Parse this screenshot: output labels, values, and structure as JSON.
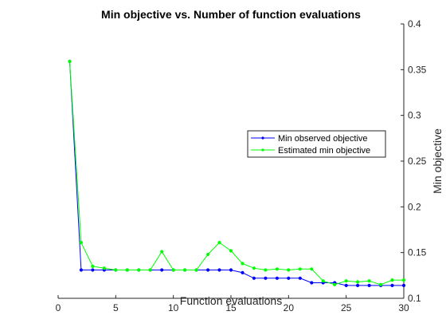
{
  "chart_data": {
    "type": "line",
    "title": "Min objective vs. Number of function evaluations",
    "xlabel": "Function evaluations",
    "ylabel": "Min objective",
    "xlim": [
      0,
      30
    ],
    "ylim": [
      0.1,
      0.4
    ],
    "xticks": [
      0,
      5,
      10,
      15,
      20,
      25,
      30
    ],
    "yticks": [
      0.1,
      0.15,
      0.2,
      0.25,
      0.3,
      0.35,
      0.4
    ],
    "y_axis_side": "right",
    "grid": false,
    "legend_position": "right-center",
    "x": [
      1,
      2,
      3,
      4,
      5,
      6,
      7,
      8,
      9,
      10,
      11,
      12,
      13,
      14,
      15,
      16,
      17,
      18,
      19,
      20,
      21,
      22,
      23,
      24,
      25,
      26,
      27,
      28,
      29,
      30
    ],
    "series": [
      {
        "name": "Min observed objective",
        "color": "#0000ff",
        "values": [
          0.359,
          0.131,
          0.131,
          0.131,
          0.131,
          0.131,
          0.131,
          0.131,
          0.131,
          0.131,
          0.131,
          0.131,
          0.131,
          0.131,
          0.131,
          0.128,
          0.122,
          0.122,
          0.122,
          0.122,
          0.122,
          0.117,
          0.117,
          0.117,
          0.114,
          0.114,
          0.114,
          0.114,
          0.114,
          0.114
        ]
      },
      {
        "name": "Estimated min objective",
        "color": "#00ff00",
        "values": [
          0.359,
          0.161,
          0.135,
          0.133,
          0.131,
          0.131,
          0.131,
          0.131,
          0.151,
          0.131,
          0.131,
          0.131,
          0.148,
          0.161,
          0.152,
          0.138,
          0.133,
          0.131,
          0.132,
          0.131,
          0.132,
          0.132,
          0.119,
          0.115,
          0.119,
          0.118,
          0.119,
          0.115,
          0.12,
          0.12
        ]
      }
    ]
  }
}
